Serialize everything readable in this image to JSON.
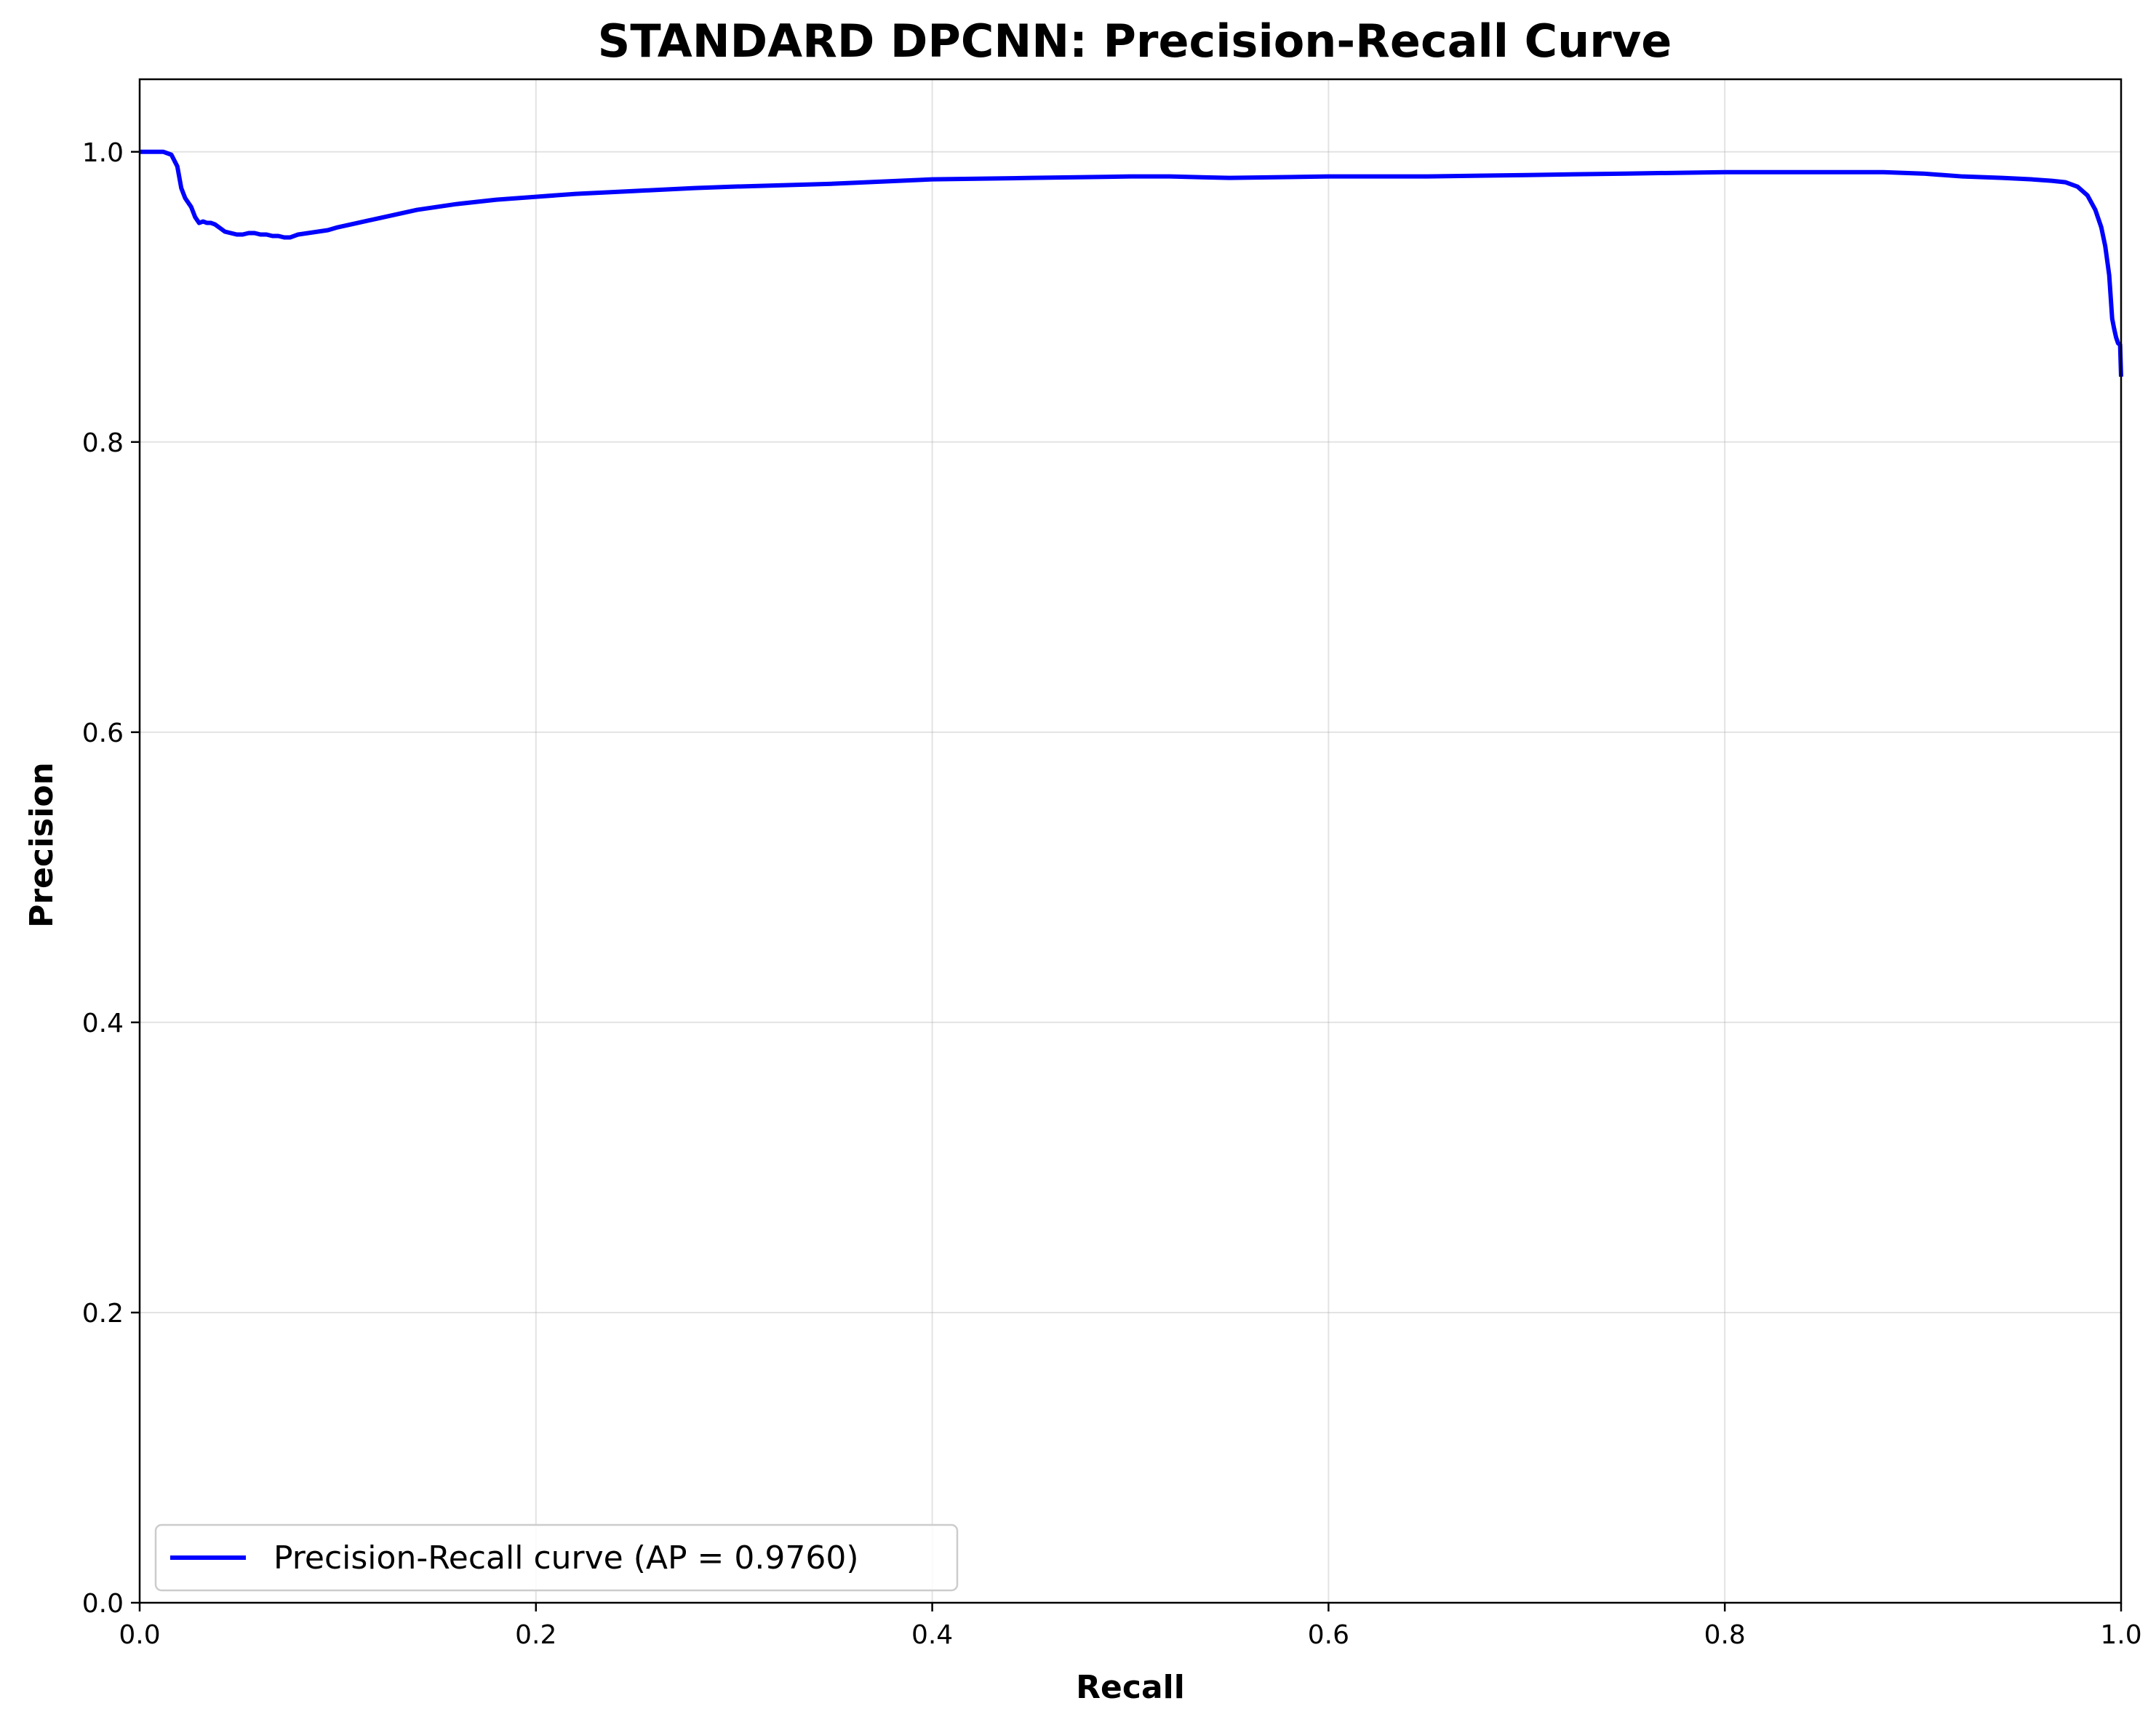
{
  "chart_data": {
    "type": "line",
    "title": "STANDARD DPCNN: Precision-Recall Curve",
    "xlabel": "Recall",
    "ylabel": "Precision",
    "xlim": [
      0.0,
      1.0
    ],
    "ylim": [
      0.0,
      1.05
    ],
    "grid": true,
    "legend_position": "lower-left",
    "x_ticks": [
      0.0,
      0.2,
      0.4,
      0.6,
      0.8,
      1.0
    ],
    "x_tick_labels": [
      "0.0",
      "0.2",
      "0.4",
      "0.6",
      "0.8",
      "1.0"
    ],
    "y_ticks": [
      0.0,
      0.2,
      0.4,
      0.6,
      0.8,
      1.0
    ],
    "y_tick_labels": [
      "0.0",
      "0.2",
      "0.4",
      "0.6",
      "0.8",
      "1.0"
    ],
    "series": [
      {
        "name": "Precision-Recall curve (AP = 0.9760)",
        "color": "#0000ff",
        "x": [
          0.0,
          0.005,
          0.012,
          0.016,
          0.019,
          0.021,
          0.023,
          0.026,
          0.028,
          0.03,
          0.032,
          0.034,
          0.036,
          0.038,
          0.04,
          0.043,
          0.046,
          0.049,
          0.052,
          0.055,
          0.058,
          0.061,
          0.064,
          0.067,
          0.07,
          0.073,
          0.076,
          0.08,
          0.085,
          0.09,
          0.095,
          0.1,
          0.11,
          0.12,
          0.13,
          0.14,
          0.15,
          0.16,
          0.18,
          0.2,
          0.22,
          0.25,
          0.28,
          0.3,
          0.35,
          0.4,
          0.45,
          0.5,
          0.52,
          0.55,
          0.6,
          0.65,
          0.7,
          0.75,
          0.8,
          0.85,
          0.88,
          0.9,
          0.92,
          0.94,
          0.955,
          0.965,
          0.972,
          0.978,
          0.983,
          0.987,
          0.99,
          0.992,
          0.994,
          0.9955,
          0.9965,
          0.9975,
          0.9985,
          0.9995,
          1.0
        ],
        "y": [
          1.0,
          1.0,
          1.0,
          0.998,
          0.99,
          0.975,
          0.968,
          0.962,
          0.955,
          0.951,
          0.952,
          0.951,
          0.951,
          0.95,
          0.948,
          0.945,
          0.944,
          0.943,
          0.943,
          0.944,
          0.944,
          0.943,
          0.943,
          0.942,
          0.942,
          0.941,
          0.941,
          0.943,
          0.944,
          0.945,
          0.946,
          0.948,
          0.951,
          0.954,
          0.957,
          0.96,
          0.962,
          0.964,
          0.967,
          0.969,
          0.971,
          0.973,
          0.975,
          0.976,
          0.978,
          0.981,
          0.982,
          0.983,
          0.983,
          0.982,
          0.983,
          0.983,
          0.984,
          0.985,
          0.986,
          0.986,
          0.986,
          0.985,
          0.983,
          0.982,
          0.981,
          0.98,
          0.979,
          0.976,
          0.97,
          0.96,
          0.948,
          0.935,
          0.915,
          0.885,
          0.878,
          0.872,
          0.868,
          0.867,
          0.845
        ]
      }
    ]
  }
}
